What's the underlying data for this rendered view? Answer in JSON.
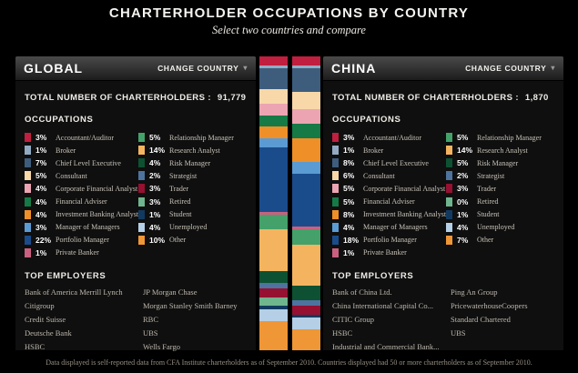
{
  "header": {
    "title": "CHARTERHOLDER OCCUPATIONS BY COUNTRY",
    "subtitle": "Select two countries and compare"
  },
  "labels": {
    "change_country": "CHANGE COUNTRY",
    "total_label": "TOTAL NUMBER OF CHARTERHOLDERS :",
    "occupations_heading": "OCCUPATIONS",
    "top_employers_heading": "TOP EMPLOYERS"
  },
  "occupations": [
    {
      "label": "Accountant/Auditor",
      "color": "#c01f3f"
    },
    {
      "label": "Broker",
      "color": "#92abc3"
    },
    {
      "label": "Chief Level Executive",
      "color": "#3e5d7d"
    },
    {
      "label": "Consultant",
      "color": "#f8d8a9"
    },
    {
      "label": "Corporate Financial Analyst",
      "color": "#eca4b2"
    },
    {
      "label": "Financial Adviser",
      "color": "#157a46"
    },
    {
      "label": "Investment Banking Analyst",
      "color": "#ee8f28"
    },
    {
      "label": "Manager of Managers",
      "color": "#5b9bd3"
    },
    {
      "label": "Portfolio Manager",
      "color": "#1a4c8b"
    },
    {
      "label": "Private Banker",
      "color": "#c9607f"
    },
    {
      "label": "Relationship Manager",
      "color": "#44a169"
    },
    {
      "label": "Research Analyst",
      "color": "#f4b45f"
    },
    {
      "label": "Risk Manager",
      "color": "#0d5132"
    },
    {
      "label": "Strategist",
      "color": "#4e739e"
    },
    {
      "label": "Trader",
      "color": "#951031"
    },
    {
      "label": "Retired",
      "color": "#6fb58d"
    },
    {
      "label": "Student",
      "color": "#123a60"
    },
    {
      "label": "Unemployed",
      "color": "#b5cfe6"
    },
    {
      "label": "Other",
      "color": "#ef9636"
    }
  ],
  "panels": [
    {
      "country": "GLOBAL",
      "total": "91,779",
      "values": [
        3,
        1,
        7,
        5,
        4,
        4,
        4,
        3,
        22,
        1,
        5,
        14,
        4,
        2,
        3,
        3,
        1,
        4,
        10
      ],
      "employers": [
        [
          "Bank of America Merrill Lynch",
          "Citigroup",
          "Credit Suisse",
          "Deutsche Bank",
          "HSBC"
        ],
        [
          "JP Morgan Chase",
          "Morgan Stanley Smith Barney",
          "RBC",
          "UBS",
          "Wells Fargo"
        ]
      ]
    },
    {
      "country": "CHINA",
      "total": "1,870",
      "values": [
        3,
        1,
        8,
        6,
        5,
        5,
        8,
        4,
        18,
        1,
        5,
        14,
        5,
        2,
        3,
        0,
        1,
        4,
        7
      ],
      "employers": [
        [
          "Bank of China Ltd.",
          "China International Capital Co...",
          "CITIC Group",
          "HSBC",
          "Industrial and Commercial Bank..."
        ],
        [
          "Ping An Group",
          "PricewaterhouseCoopers",
          "Standard Chartered",
          "UBS"
        ]
      ]
    }
  ],
  "footer": "Data displayed is self-reported data from CFA Institute charterholders as of September 2010. Countries displayed had 50 or more charterholders as of September 2010.",
  "chart_data": {
    "type": "bar",
    "stacked": true,
    "orientation": "vertical",
    "title": "Charterholder Occupations by Country",
    "units": "%",
    "ylim": [
      0,
      100
    ],
    "categories": [
      "Accountant/Auditor",
      "Broker",
      "Chief Level Executive",
      "Consultant",
      "Corporate Financial Analyst",
      "Financial Adviser",
      "Investment Banking Analyst",
      "Manager of Managers",
      "Portfolio Manager",
      "Private Banker",
      "Relationship Manager",
      "Research Analyst",
      "Risk Manager",
      "Strategist",
      "Trader",
      "Retired",
      "Student",
      "Unemployed",
      "Other"
    ],
    "series": [
      {
        "name": "GLOBAL",
        "total_charterholders": 91779,
        "values": [
          3,
          1,
          7,
          5,
          4,
          4,
          4,
          3,
          22,
          1,
          5,
          14,
          4,
          2,
          3,
          3,
          1,
          4,
          10
        ]
      },
      {
        "name": "CHINA",
        "total_charterholders": 1870,
        "values": [
          3,
          1,
          8,
          6,
          5,
          5,
          8,
          4,
          18,
          1,
          5,
          14,
          5,
          2,
          3,
          0,
          1,
          4,
          7
        ]
      }
    ],
    "legend_position": "within side panels"
  }
}
